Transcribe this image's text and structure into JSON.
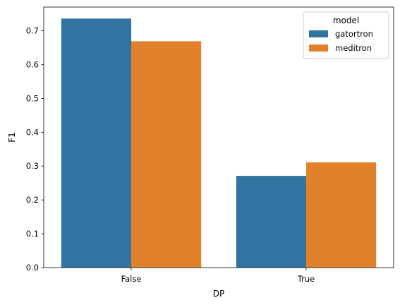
{
  "chart_data": {
    "type": "bar",
    "xlabel": "DP",
    "ylabel": "F1",
    "categories": [
      "False",
      "True"
    ],
    "series": [
      {
        "name": "gatortron",
        "color": "#3274a1",
        "values": [
          0.736,
          0.271
        ]
      },
      {
        "name": "meditron",
        "color": "#e1812c",
        "values": [
          0.669,
          0.311
        ]
      }
    ],
    "ylim": [
      0,
      0.77
    ],
    "yticks": [
      0.0,
      0.1,
      0.2,
      0.3,
      0.4,
      0.5,
      0.6,
      0.7
    ],
    "ytick_labels": [
      "0.0",
      "0.1",
      "0.2",
      "0.3",
      "0.4",
      "0.5",
      "0.6",
      "0.7"
    ],
    "grid": false,
    "legend": {
      "title": "model",
      "placement": "top-right"
    }
  }
}
